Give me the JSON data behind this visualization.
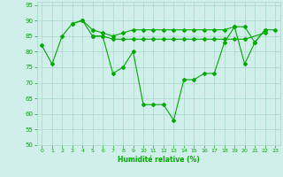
{
  "title": "",
  "xlabel": "Humidité relative (%)",
  "ylabel": "",
  "background_color": "#d0eeea",
  "grid_color": "#aad4cc",
  "line_color": "#00aa00",
  "xlim": [
    -0.5,
    23.5
  ],
  "ylim": [
    50,
    96
  ],
  "yticks": [
    50,
    55,
    60,
    65,
    70,
    75,
    80,
    85,
    90,
    95
  ],
  "xticks": [
    0,
    1,
    2,
    3,
    4,
    5,
    6,
    7,
    8,
    9,
    10,
    11,
    12,
    13,
    14,
    15,
    16,
    17,
    18,
    19,
    20,
    21,
    22,
    23
  ],
  "series": [
    {
      "x": [
        0,
        1,
        2,
        3,
        4,
        5,
        6,
        7,
        8,
        9,
        10,
        11,
        12,
        13,
        14,
        15,
        16,
        17,
        18,
        19,
        20,
        21,
        22
      ],
      "y": [
        82,
        76,
        85,
        89,
        90,
        85,
        85,
        73,
        75,
        80,
        63,
        63,
        63,
        58,
        71,
        71,
        73,
        73,
        83,
        88,
        76,
        83,
        87
      ]
    },
    {
      "x": [
        3,
        4,
        5,
        6,
        7,
        8,
        9,
        10,
        11,
        12,
        13,
        14,
        15,
        16,
        17,
        18,
        19,
        20,
        21,
        22,
        23
      ],
      "y": [
        89,
        90,
        87,
        86,
        85,
        86,
        87,
        87,
        87,
        87,
        87,
        87,
        87,
        87,
        87,
        87,
        88,
        88,
        83,
        87,
        87
      ]
    },
    {
      "x": [
        5,
        6,
        7,
        8,
        9,
        10,
        11,
        12,
        13,
        14,
        15,
        16,
        17,
        18,
        19,
        20,
        22
      ],
      "y": [
        85,
        85,
        84,
        84,
        84,
        84,
        84,
        84,
        84,
        84,
        84,
        84,
        84,
        84,
        84,
        84,
        86
      ]
    }
  ]
}
